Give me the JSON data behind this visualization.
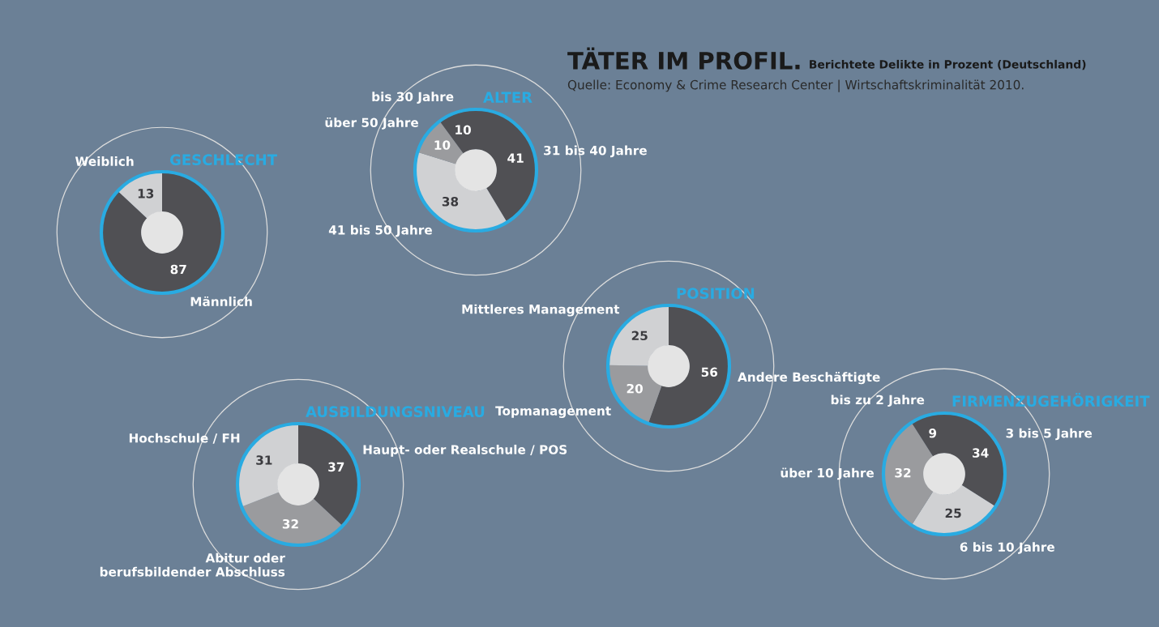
{
  "chart_data": [
    {
      "type": "other",
      "title": "TÄTER IM PROFIL.",
      "subtitle": "Berichtete Delikte in Prozent (Deutschland)",
      "annotations": [
        "Quelle: Economy & Crime Research Center | Wirtschaftskriminalität 2010."
      ]
    },
    {
      "type": "donut",
      "title": "GESCHLECHT",
      "categories": [
        "Männlich",
        "Weiblich"
      ],
      "values": [
        87,
        13
      ],
      "colors": [
        "#505054",
        "#d0d1d3"
      ],
      "data_labels": true
    },
    {
      "type": "donut",
      "title": "ALTER",
      "categories": [
        "31 bis 40 Jahre",
        "41 bis 50 Jahre",
        "über 50 Jahre",
        "bis 30 Jahre"
      ],
      "values": [
        41,
        38,
        10,
        10
      ],
      "colors": [
        "#505054",
        "#d0d1d3",
        "#9a9b9e",
        "#505054"
      ],
      "data_labels": true
    },
    {
      "type": "donut",
      "title": "AUSBILDUNGSNIVEAU",
      "categories": [
        "Haupt- oder Realschule / POS",
        "Abitur oder\nberufsbildender Abschluss",
        "Hochschule / FH"
      ],
      "values": [
        37,
        32,
        31
      ],
      "colors": [
        "#505054",
        "#9a9b9e",
        "#d0d1d3"
      ],
      "data_labels": true
    },
    {
      "type": "donut",
      "title": "POSITION",
      "categories": [
        "Andere Beschäftigte",
        "Topmanagement",
        "Mittleres Management"
      ],
      "values": [
        56,
        20,
        25
      ],
      "colors": [
        "#505054",
        "#9a9b9e",
        "#d0d1d3"
      ],
      "data_labels": true
    },
    {
      "type": "donut",
      "title": "FIRMENZUGEHÖRIGKEIT",
      "categories": [
        "3 bis 5 Jahre",
        "6 bis 10 Jahre",
        "über 10 Jahre",
        "bis zu 2 Jahre"
      ],
      "values": [
        34,
        25,
        32,
        9
      ],
      "colors": [
        "#505054",
        "#d0d1d3",
        "#9a9b9e",
        "#505054"
      ],
      "data_labels": true
    }
  ]
}
